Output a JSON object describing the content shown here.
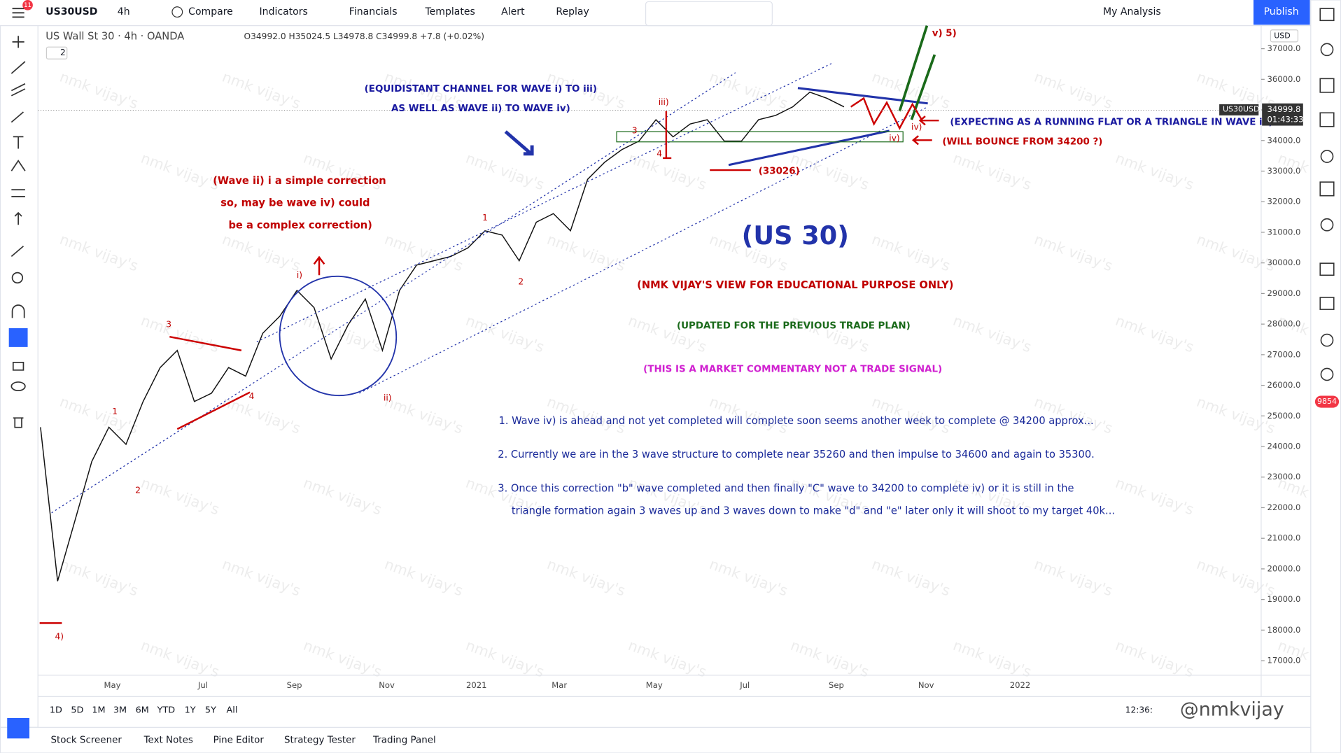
{
  "toolbar": {
    "badge": "11",
    "symbol": "US30USD",
    "interval": "4h",
    "compare": "Compare",
    "indicators": "Indicators",
    "financials": "Financials",
    "templates": "Templates",
    "alert": "Alert",
    "replay": "Replay",
    "layout": "My Analysis",
    "publish": "Publish"
  },
  "legend": {
    "title": "US Wall St 30 · 4h · OANDA",
    "ohlc": "O34992.0 H35024.5 L34978.8 C34999.8 +7.8 (+0.02%)",
    "collapsed": "2"
  },
  "price_scale": {
    "currency": "USD",
    "symbol_tag": "US30USD",
    "last_price": "34999.8",
    "countdown": "01:43:33",
    "alerts_badge": "9854"
  },
  "watermark": "nmk vijay's",
  "annotations": {
    "channel_1": "(EQUIDISTANT CHANNEL FOR WAVE i) TO iii)",
    "channel_2": "AS WELL AS WAVE ii) TO WAVE iv)",
    "wave_ii_1": "(Wave ii) i a simple correction",
    "wave_ii_2": "so, may be wave iv) could",
    "wave_ii_3": "be a complex correction)",
    "heading": "(US 30)",
    "disclaimer": "(NMK VIJAY'S VIEW FOR EDUCATIONAL PURPOSE ONLY)",
    "updated": "(UPDATED FOR THE PREVIOUS TRADE PLAN)",
    "commentary": "(THIS IS A MARKET COMMENTARY NOT A TRADE SIGNAL)",
    "expecting": "(EXPECTING AS A RUNNING FLAT OR A TRIANGLE IN WAVE iv)",
    "bounce": "(WiLL BOUNCE FROM 34200 ?)",
    "low": "(33026)",
    "target": "v) 5)",
    "notes": [
      "1. Wave iv) is ahead and not yet completed will complete soon seems another week to complete @ 34200 approx...",
      "2. Currently we are in the 3 wave structure to complete near 35260 and then impulse to 34600 and again to 35300.",
      "3. Once this correction \"b\" wave completed and then finally \"C\" wave to 34200 to complete iv) or it is still in the",
      "triangle formation again 3 waves up and 3 waves down to make \"d\" and \"e\" later only it will shoot to my target 40k..."
    ],
    "wave_labels": [
      "4)",
      "1",
      "2",
      "3",
      "4",
      "i)",
      "ii)",
      "1",
      "2",
      "iii)",
      "3",
      "4",
      "iv)",
      "iv)"
    ]
  },
  "chart_data": {
    "type": "line",
    "x_labels": [
      "May",
      "Jul",
      "Sep",
      "Nov",
      "2021",
      "Mar",
      "May",
      "Jul",
      "Sep",
      "Nov",
      "2022"
    ],
    "ylim": [
      16525,
      37754
    ],
    "yticks": [
      {
        "value": 17000,
        "label": "17000.0"
      },
      {
        "value": 18000,
        "label": "18000.0"
      },
      {
        "value": 19000,
        "label": "19000.0"
      },
      {
        "value": 20000,
        "label": "20000.0"
      },
      {
        "value": 21000,
        "label": "21000.0"
      },
      {
        "value": 22000,
        "label": "22000.0"
      },
      {
        "value": 23000,
        "label": "23000.0"
      },
      {
        "value": 24000,
        "label": "24000.0"
      },
      {
        "value": 25000,
        "label": "25000.0"
      },
      {
        "value": 26000,
        "label": "26000.0"
      },
      {
        "value": 27000,
        "label": "27000.0"
      },
      {
        "value": 28000,
        "label": "28000.0"
      },
      {
        "value": 29000,
        "label": "29000.0"
      },
      {
        "value": 30000,
        "label": "30000.0"
      },
      {
        "value": 31000,
        "label": "31000.0"
      },
      {
        "value": 32000,
        "label": "32000.0"
      },
      {
        "value": 33000,
        "label": "33000.0"
      },
      {
        "value": 34000,
        "label": "34000.0"
      },
      {
        "value": 35000,
        "label": "35000.0"
      },
      {
        "value": 36000,
        "label": "36000.0"
      },
      {
        "value": 37000,
        "label": "37000.0"
      }
    ],
    "series": [
      {
        "name": "US30USD",
        "color": "#111111",
        "values": [
          24630,
          19600,
          21550,
          23510,
          24630,
          24070,
          25470,
          26580,
          27140,
          25470,
          25740,
          26580,
          26300,
          27700,
          28260,
          29100,
          28540,
          26860,
          27980,
          28820,
          27140,
          29100,
          29930,
          30070,
          30210,
          30490,
          31050,
          30910,
          30070,
          31330,
          31610,
          31050,
          32730,
          33290,
          33700,
          33980,
          34680,
          34120,
          34540,
          34680,
          33980,
          33980,
          34680,
          34820,
          35100,
          35580,
          35380,
          35100
        ]
      }
    ]
  },
  "bottom": {
    "ranges": [
      "1D",
      "5D",
      "1M",
      "3M",
      "6M",
      "YTD",
      "1Y",
      "5Y",
      "All"
    ],
    "clock": "12:36:",
    "signature": "@nmkvijay",
    "tabs": [
      "Stock Screener",
      "Text Notes",
      "Pine Editor",
      "Strategy Tester",
      "Trading Panel"
    ]
  }
}
